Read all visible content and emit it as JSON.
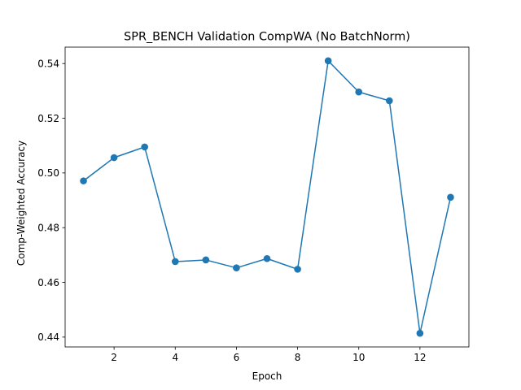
{
  "chart_data": {
    "type": "line",
    "title": "SPR_BENCH Validation CompWA (No BatchNorm)",
    "xlabel": "Epoch",
    "ylabel": "Comp-Weighted Accuracy",
    "x": [
      1,
      2,
      3,
      4,
      5,
      6,
      7,
      8,
      9,
      10,
      11,
      12,
      13
    ],
    "series": [
      {
        "values": [
          0.4971,
          0.5056,
          0.5095,
          0.4676,
          0.4682,
          0.4653,
          0.4687,
          0.4648,
          0.541,
          0.5296,
          0.5264,
          0.4414,
          0.4911
        ]
      }
    ],
    "xticks": [
      2,
      4,
      6,
      8,
      10,
      12
    ],
    "yticks": [
      0.44,
      0.46,
      0.48,
      0.5,
      0.52,
      0.54
    ],
    "xlim": [
      0.4,
      13.6
    ],
    "ylim": [
      0.4364,
      0.546
    ],
    "grid": false,
    "colors": {
      "line": "#1f77b4",
      "marker": "#1f77b4",
      "axes": "#000000"
    },
    "marker": "circle"
  }
}
